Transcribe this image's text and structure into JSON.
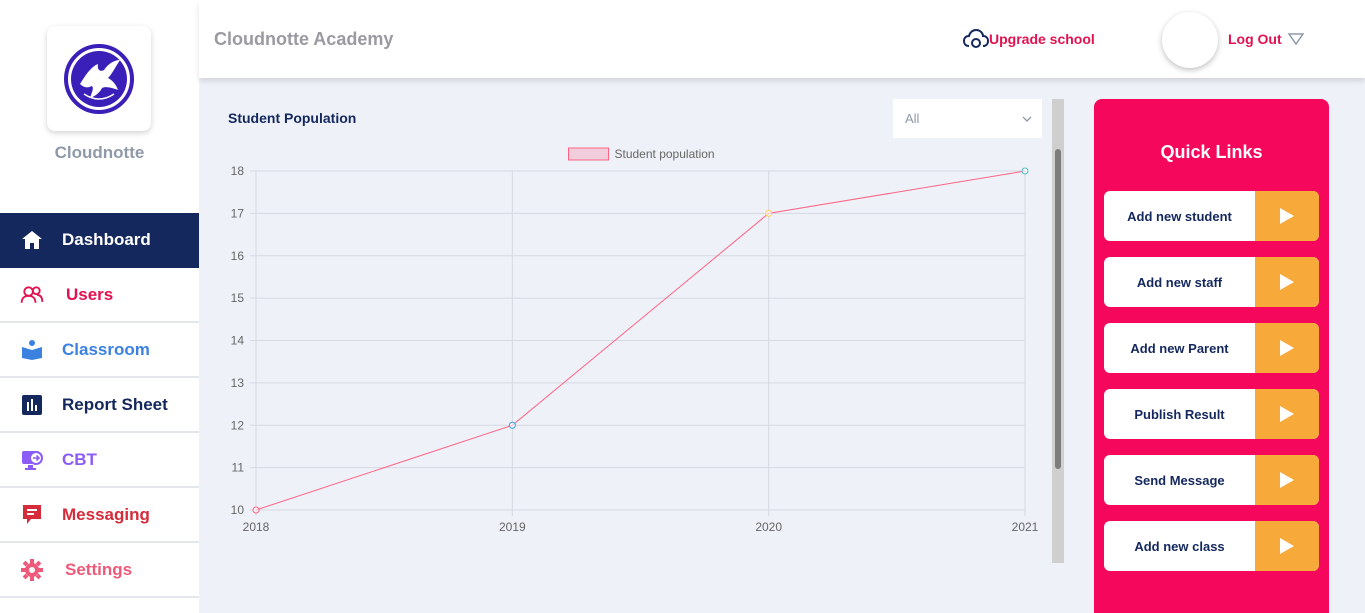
{
  "sidebar": {
    "brand": "Cloudnotte",
    "items": [
      {
        "label": "Dashboard",
        "icon": "home-icon",
        "color": "#ffffff",
        "active": true
      },
      {
        "label": "Users",
        "icon": "users-icon",
        "color": "#e3114f"
      },
      {
        "label": "Classroom",
        "icon": "reading-icon",
        "color": "#3b82e0"
      },
      {
        "label": "Report Sheet",
        "icon": "bar-chart-icon",
        "color": "#14285e"
      },
      {
        "label": "CBT",
        "icon": "monitor-icon",
        "color": "#8b5cf6"
      },
      {
        "label": "Messaging",
        "icon": "message-icon",
        "color": "#d62b3a"
      },
      {
        "label": "Settings",
        "icon": "gear-icon",
        "color": "#ef5a7a"
      }
    ]
  },
  "header": {
    "school_name": "Cloudnotte Academy",
    "upgrade_label": "Upgrade school",
    "logout_label": "Log Out"
  },
  "chart_panel": {
    "title": "Student Population",
    "filter_value": "All"
  },
  "chart_data": {
    "type": "line",
    "x": [
      "2018",
      "2019",
      "2020",
      "2021"
    ],
    "series": [
      {
        "name": "Student population",
        "values": [
          10,
          12,
          17,
          18
        ],
        "color": "#ff6384"
      }
    ],
    "ylim": [
      10,
      18
    ],
    "yticks": [
      10,
      11,
      12,
      13,
      14,
      15,
      16,
      17,
      18
    ],
    "grid": true,
    "legend": "top-center"
  },
  "quick_links": {
    "title": "Quick Links",
    "items": [
      "Add new student",
      "Add new staff",
      "Add new Parent",
      "Publish Result",
      "Send Message",
      "Add new class"
    ]
  },
  "colors": {
    "primary": "#14285e",
    "accent": "#f5075b",
    "arrow": "#f7a93a"
  }
}
